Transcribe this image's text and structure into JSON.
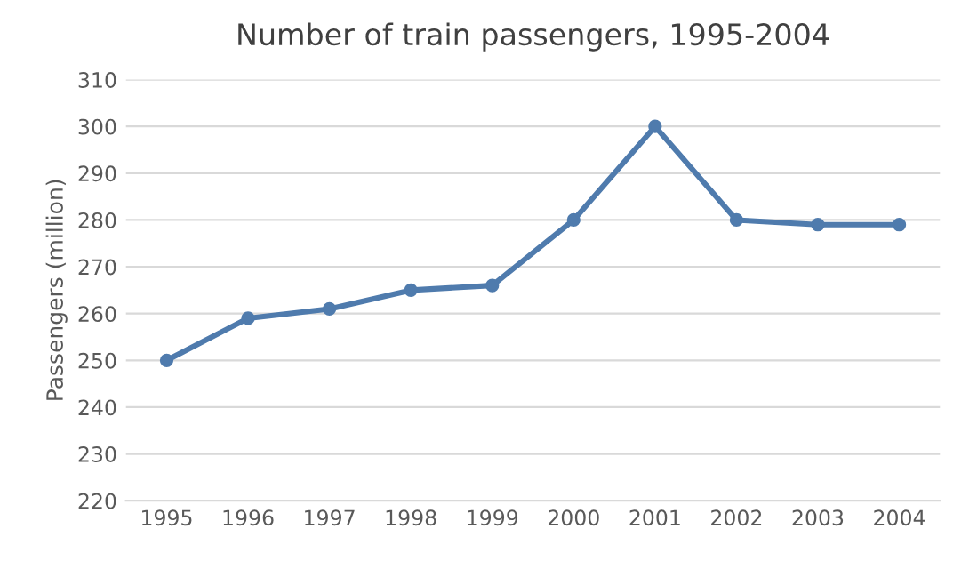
{
  "chart_data": {
    "type": "line",
    "title": "Number of train passengers, 1995-2004",
    "ylabel": "Passengers (million)",
    "categories": [
      "1995",
      "1996",
      "1997",
      "1998",
      "1999",
      "2000",
      "2001",
      "2002",
      "2003",
      "2004"
    ],
    "series": [
      {
        "color": "#4f7bad",
        "values": [
          250,
          259,
          261,
          265,
          266,
          280,
          300,
          280,
          279,
          279
        ]
      }
    ],
    "ylim": [
      220,
      310
    ],
    "yticks": [
      220,
      230,
      240,
      250,
      260,
      270,
      280,
      290,
      300,
      310
    ],
    "grid": "y",
    "marker": "circle",
    "line_style": "solid",
    "legend": false
  }
}
